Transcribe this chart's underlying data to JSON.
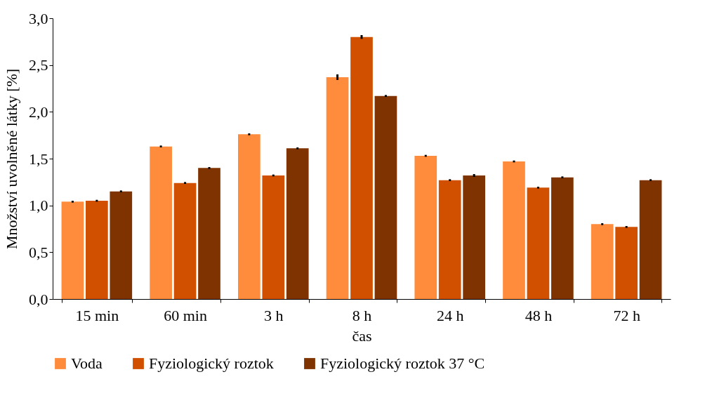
{
  "chart_data": {
    "type": "bar",
    "xlabel": "čas",
    "ylabel": "Množství uvolněné látky [%]",
    "categories": [
      "15 min",
      "60 min",
      "3 h",
      "8 h",
      "24 h",
      "48 h",
      "72 h"
    ],
    "series": [
      {
        "name": "Voda",
        "color": "#ff8c3c",
        "values": [
          1.04,
          1.63,
          1.76,
          2.37,
          1.53,
          1.47,
          0.8
        ],
        "errors": [
          0.01,
          0.01,
          0.01,
          0.03,
          0.01,
          0.01,
          0.01
        ]
      },
      {
        "name": "Fyziologický roztok",
        "color": "#d05000",
        "values": [
          1.05,
          1.24,
          1.32,
          2.8,
          1.27,
          1.19,
          0.77
        ],
        "errors": [
          0.01,
          0.01,
          0.01,
          0.02,
          0.01,
          0.01,
          0.01
        ]
      },
      {
        "name": "Fyziologický roztok 37 °C",
        "color": "#7f3300",
        "values": [
          1.15,
          1.4,
          1.61,
          2.17,
          1.32,
          1.3,
          1.27
        ],
        "errors": [
          0.01,
          0.01,
          0.01,
          0.01,
          0.015,
          0.01,
          0.01
        ]
      }
    ],
    "ylim": [
      0,
      3
    ],
    "yticks": [
      {
        "value": 0,
        "label": "0,0"
      },
      {
        "value": 0.5,
        "label": "0,5"
      },
      {
        "value": 1,
        "label": "1,0"
      },
      {
        "value": 1.5,
        "label": "1,5"
      },
      {
        "value": 2,
        "label": "2,0"
      },
      {
        "value": 2.5,
        "label": "2,5"
      },
      {
        "value": 3,
        "label": "3,0"
      }
    ],
    "grid": false,
    "legend": "bottom"
  }
}
